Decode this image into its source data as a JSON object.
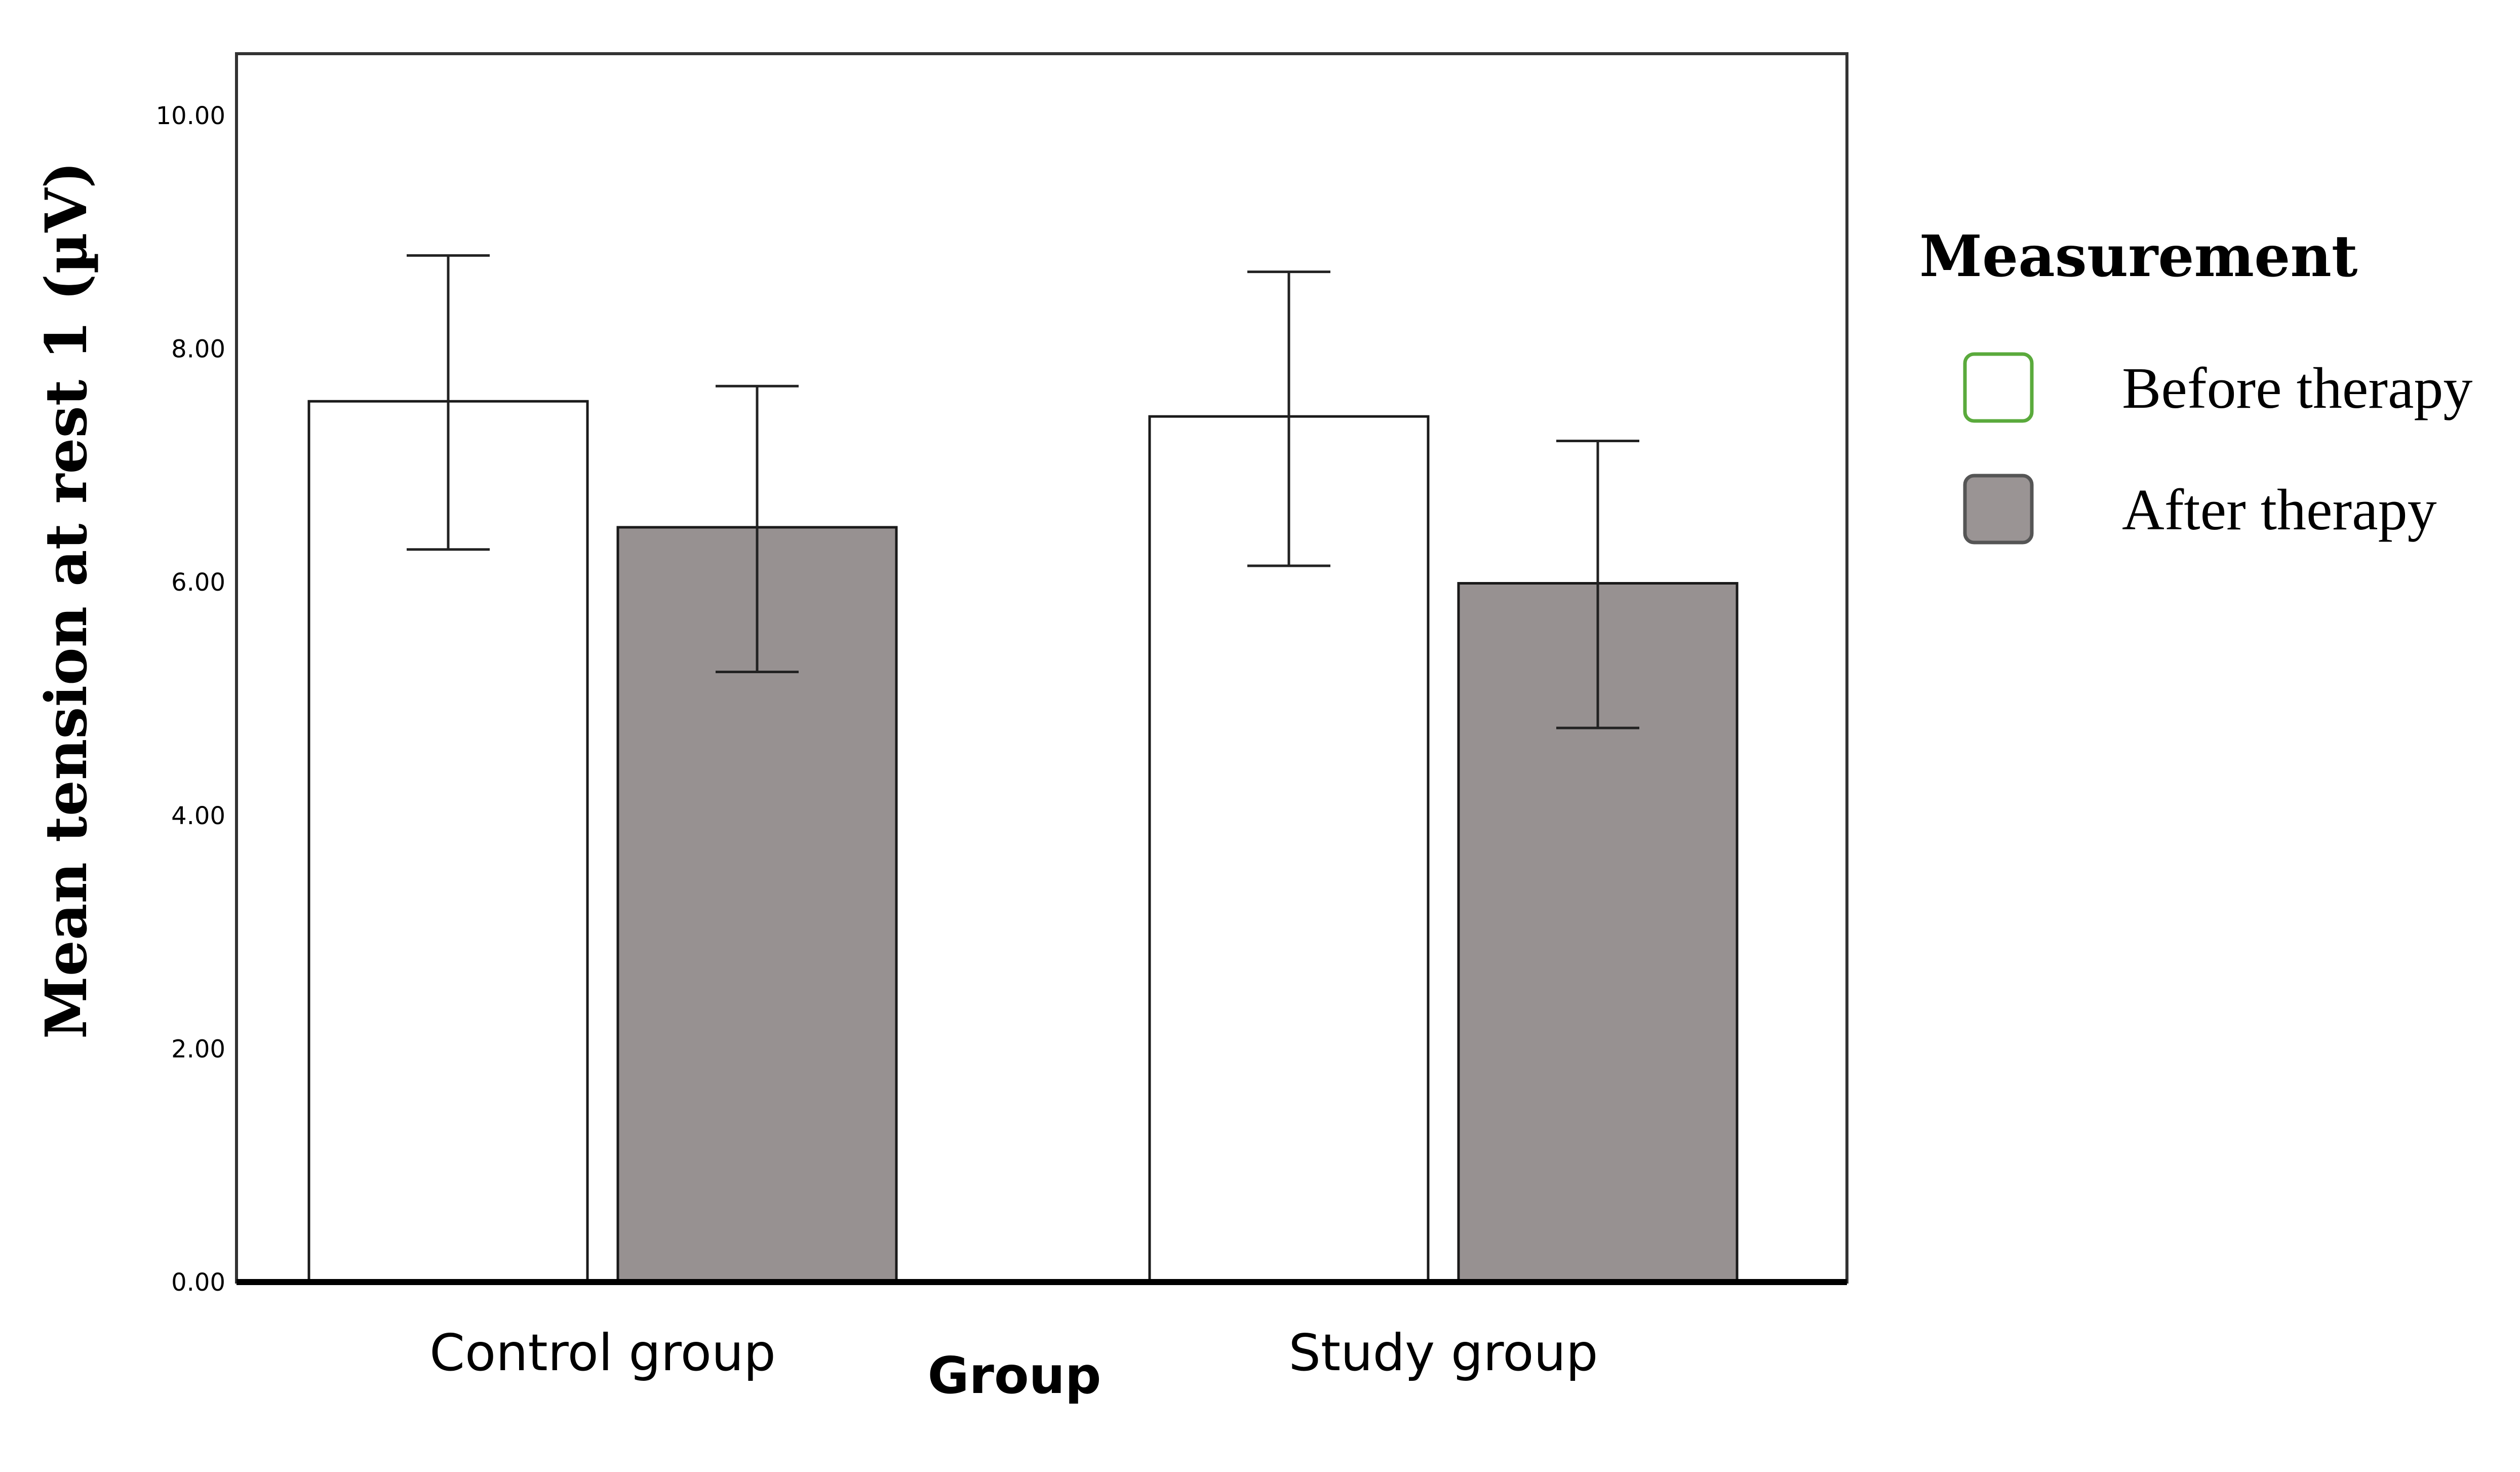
{
  "chart_data": {
    "type": "bar",
    "title": "",
    "xlabel": "Group",
    "ylabel": "Mean tension at rest 1 (µV)",
    "categories": [
      "Control group",
      "Study group"
    ],
    "series": [
      {
        "name": "Before therapy",
        "values": [
          7.55,
          7.42
        ],
        "error_low": [
          6.28,
          6.14
        ],
        "error_high": [
          8.8,
          8.66
        ],
        "fill": "#ffffff",
        "legend_stroke": "#5aaa3c"
      },
      {
        "name": "After therapy",
        "values": [
          6.47,
          5.99
        ],
        "error_low": [
          5.23,
          4.75
        ],
        "error_high": [
          7.68,
          7.21
        ],
        "fill": "#979191",
        "legend_stroke": "#555555"
      }
    ],
    "ylim": [
      0,
      10.5
    ],
    "yticks": [
      0,
      2,
      4,
      6,
      8,
      10
    ],
    "ytick_labels": [
      "0.00",
      "2.00",
      "4.00",
      "6.00",
      "8.00",
      "10.00"
    ],
    "legend_title": "Measurement",
    "legend_position": "right",
    "grid": false
  }
}
